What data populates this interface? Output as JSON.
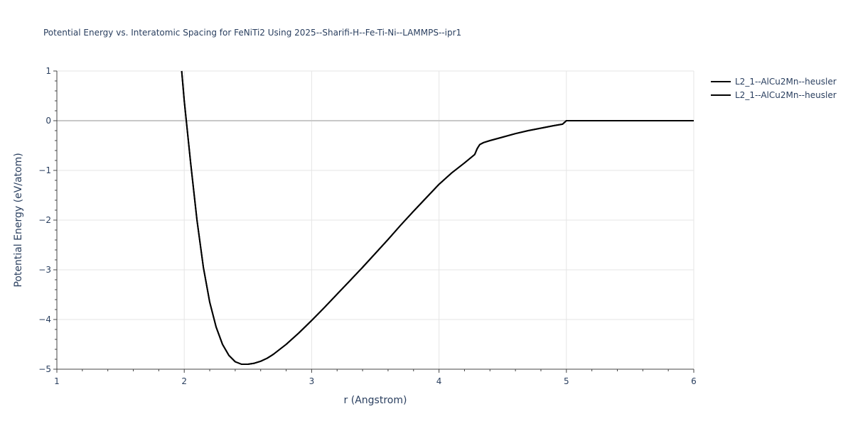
{
  "chart_data": {
    "type": "line",
    "title": "Potential Energy vs. Interatomic Spacing for FeNiTi2 Using 2025--Sharifi-H--Fe-Ti-Ni--LAMMPS--ipr1",
    "xlabel": "r (Angstrom)",
    "ylabel": "Potential Energy (eV/atom)",
    "xlim": [
      1,
      6
    ],
    "ylim": [
      -5,
      1
    ],
    "x_ticks": [
      "1",
      "2",
      "3",
      "4",
      "5",
      "6"
    ],
    "y_ticks": [
      "1",
      "0",
      "−1",
      "−2",
      "−3",
      "−4",
      "−5"
    ],
    "grid": true,
    "legend_position": "top-right",
    "series": [
      {
        "name": "L2_1--AlCu2Mn--heusler",
        "color": "#000000",
        "x": [
          1.98,
          2.0,
          2.05,
          2.1,
          2.15,
          2.2,
          2.25,
          2.3,
          2.35,
          2.4,
          2.45,
          2.5,
          2.55,
          2.6,
          2.65,
          2.7,
          2.8,
          2.9,
          3.0,
          3.1,
          3.2,
          3.3,
          3.4,
          3.5,
          3.6,
          3.7,
          3.8,
          3.9,
          4.0,
          4.1,
          4.2,
          4.28,
          4.3,
          4.32,
          4.35,
          4.4,
          4.5,
          4.6,
          4.7,
          4.8,
          4.9,
          4.97,
          5.0,
          6.0
        ],
        "y": [
          1.0,
          0.4,
          -0.85,
          -2.0,
          -2.95,
          -3.65,
          -4.15,
          -4.5,
          -4.72,
          -4.85,
          -4.9,
          -4.9,
          -4.88,
          -4.84,
          -4.78,
          -4.7,
          -4.5,
          -4.27,
          -4.02,
          -3.76,
          -3.49,
          -3.22,
          -2.95,
          -2.67,
          -2.39,
          -2.1,
          -1.82,
          -1.55,
          -1.28,
          -1.05,
          -0.85,
          -0.68,
          -0.56,
          -0.48,
          -0.44,
          -0.4,
          -0.33,
          -0.26,
          -0.2,
          -0.15,
          -0.1,
          -0.07,
          0.0,
          0.0
        ]
      },
      {
        "name": "L2_1--AlCu2Mn--heusler",
        "color": "#000000",
        "x": [
          1.98,
          2.0,
          2.05,
          2.1,
          2.15,
          2.2,
          2.25,
          2.3,
          2.35,
          2.4,
          2.45,
          2.5,
          2.55,
          2.6,
          2.65,
          2.7,
          2.8,
          2.9,
          3.0,
          3.1,
          3.2,
          3.3,
          3.4,
          3.5,
          3.6,
          3.7,
          3.8,
          3.9,
          4.0,
          4.1,
          4.2,
          4.28,
          4.3,
          4.32,
          4.35,
          4.4,
          4.5,
          4.6,
          4.7,
          4.8,
          4.9,
          4.97,
          5.0,
          6.0
        ],
        "y": [
          1.0,
          0.4,
          -0.85,
          -2.0,
          -2.95,
          -3.65,
          -4.15,
          -4.5,
          -4.72,
          -4.85,
          -4.9,
          -4.9,
          -4.88,
          -4.84,
          -4.78,
          -4.7,
          -4.5,
          -4.27,
          -4.02,
          -3.76,
          -3.49,
          -3.22,
          -2.95,
          -2.67,
          -2.39,
          -2.1,
          -1.82,
          -1.55,
          -1.28,
          -1.05,
          -0.85,
          -0.68,
          -0.56,
          -0.48,
          -0.44,
          -0.4,
          -0.33,
          -0.26,
          -0.2,
          -0.15,
          -0.1,
          -0.07,
          0.0,
          0.0
        ]
      }
    ]
  }
}
